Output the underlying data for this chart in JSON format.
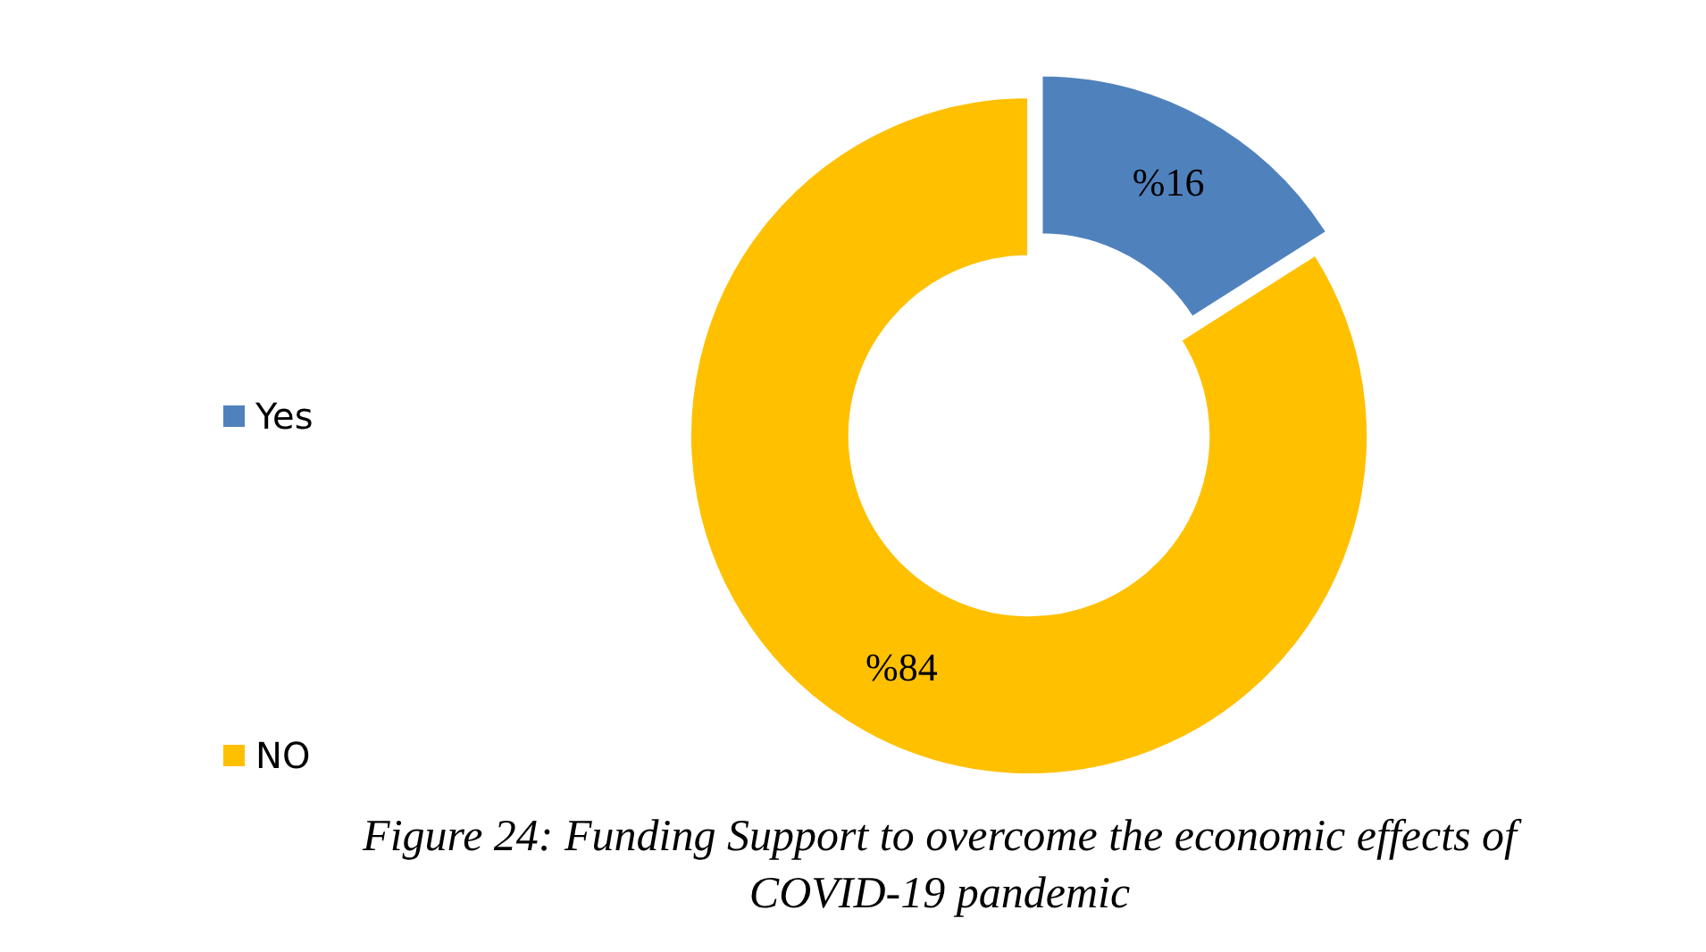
{
  "chart_data": {
    "type": "donut",
    "categories": [
      "Yes",
      "NO"
    ],
    "values": [
      16,
      84
    ],
    "colors": [
      "#4f81bd",
      "#ffc000"
    ],
    "value_labels": [
      "%16",
      "%84"
    ],
    "legend": "left",
    "annotations": [
      "Figure 24: Funding Support to overcome the economic effects of COVID-19 pandemic"
    ]
  }
}
